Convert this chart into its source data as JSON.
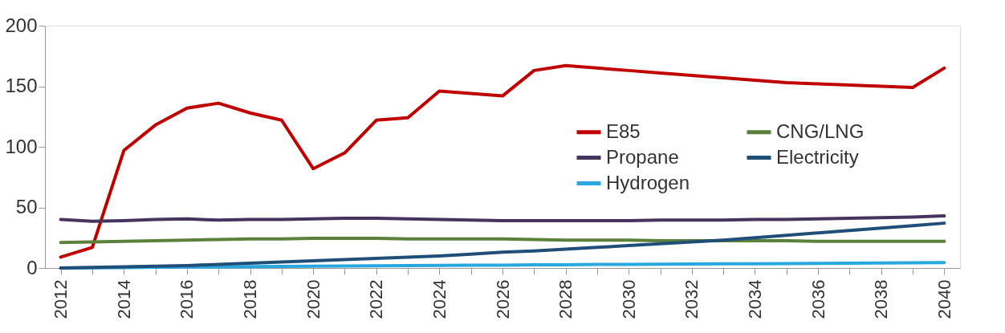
{
  "chart_data": {
    "type": "line",
    "categories": [
      "2012",
      null,
      "2014",
      null,
      "2016",
      null,
      "2018",
      null,
      "2020",
      null,
      "2022",
      null,
      "2024",
      null,
      "2026",
      null,
      "2028",
      null,
      "2030",
      null,
      "2032",
      null,
      "2034",
      null,
      "2036",
      null,
      "2038",
      null,
      "2040"
    ],
    "ylim": [
      0,
      200
    ],
    "yticks": [
      0,
      50,
      100,
      150,
      200
    ],
    "grid": false,
    "legend": "right",
    "marker": "none",
    "line_style": "solid",
    "series": [
      {
        "name": "E85",
        "color": "#c00000",
        "values": [
          9,
          17,
          97,
          118,
          132,
          136,
          128,
          122,
          82,
          95,
          122,
          124,
          146,
          144,
          142,
          163,
          167,
          165,
          163,
          161,
          159,
          157,
          155,
          153,
          152,
          151,
          150,
          149,
          165
        ]
      },
      {
        "name": "Propane",
        "color": "#46345e",
        "values": [
          40,
          38.5,
          39,
          40,
          40.5,
          39.5,
          40,
          40,
          40.5,
          41,
          41,
          40.5,
          40,
          39.5,
          39,
          39,
          39,
          39,
          39,
          39.5,
          39.5,
          39.5,
          40,
          40,
          40.5,
          41,
          41.5,
          42,
          43
        ]
      },
      {
        "name": "Hydrogen",
        "color": "#29a8e0",
        "values": [
          0,
          0.2,
          0.4,
          0.6,
          0.8,
          1,
          1.1,
          1.3,
          1.5,
          1.6,
          1.8,
          2,
          2.1,
          2.3,
          2.4,
          2.6,
          2.7,
          2.9,
          3,
          3.1,
          3.3,
          3.4,
          3.5,
          3.7,
          3.8,
          4,
          4.1,
          4.3,
          4.5
        ]
      },
      {
        "name": "CNG/LNG",
        "color": "#5b803a",
        "values": [
          21,
          21.5,
          22,
          22.5,
          23,
          23.5,
          24,
          24,
          24.5,
          24.5,
          24.5,
          24,
          24,
          24,
          24,
          23.5,
          23,
          23,
          23,
          22.5,
          22.5,
          22.5,
          22.5,
          22.5,
          22,
          22,
          22,
          22,
          22
        ]
      },
      {
        "name": "Electricity",
        "color": "#1f4e79",
        "values": [
          0,
          0.5,
          1,
          1.5,
          2,
          3,
          4,
          5,
          6,
          7,
          8,
          9,
          10,
          11.5,
          13,
          14,
          15.5,
          17,
          18.5,
          20,
          21.5,
          23,
          25,
          27,
          29,
          31,
          33,
          35,
          37
        ]
      }
    ]
  }
}
